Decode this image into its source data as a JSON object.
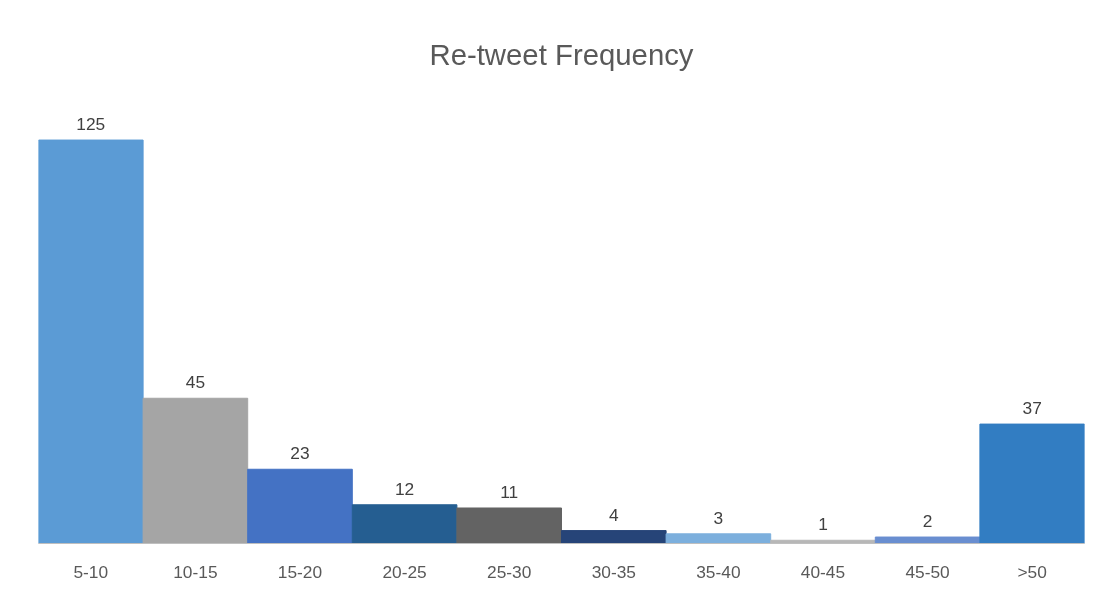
{
  "chart_data": {
    "type": "bar",
    "title": "Re-tweet Frequency",
    "categories": [
      "5-10",
      "10-15",
      "15-20",
      "20-25",
      "25-30",
      "30-35",
      "35-40",
      "40-45",
      "45-50",
      ">50"
    ],
    "values": [
      125,
      45,
      23,
      12,
      11,
      4,
      3,
      1,
      2,
      37
    ],
    "colors": [
      "#5b9bd5",
      "#a5a5a5",
      "#4472c4",
      "#255e91",
      "#636363",
      "#264478",
      "#7cafdd",
      "#b7b7b7",
      "#698ed0",
      "#327dc2"
    ],
    "data_labels": true
  }
}
